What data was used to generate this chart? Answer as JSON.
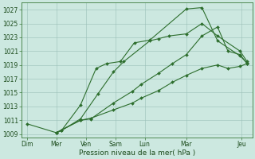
{
  "background_color": "#cce8e0",
  "grid_color": "#9abfb8",
  "line_color": "#2d6e2d",
  "xlabel": "Pression niveau de la mer( hPa )",
  "ylim": [
    1008.5,
    1028.0
  ],
  "yticks": [
    1009,
    1011,
    1013,
    1015,
    1017,
    1019,
    1021,
    1023,
    1025,
    1027
  ],
  "xlim": [
    -0.15,
    6.5
  ],
  "day_positions": [
    0,
    0.85,
    1.7,
    2.55,
    3.4,
    4.6,
    6.2
  ],
  "day_labels": [
    "Dim",
    "Mer",
    "Ven",
    "Sam",
    "Lun",
    "Mar",
    "Jeu"
  ],
  "series": [
    {
      "x": [
        0.0,
        0.85,
        1.0,
        1.55,
        2.0,
        2.3,
        2.7,
        3.1,
        3.55,
        4.6,
        5.05,
        5.5,
        6.15,
        6.35
      ],
      "y": [
        1010.5,
        1009.2,
        1009.5,
        1013.2,
        1018.5,
        1019.2,
        1019.5,
        1022.2,
        1022.6,
        1027.1,
        1027.3,
        1022.5,
        1020.3,
        1019.3
      ]
    },
    {
      "x": [
        0.85,
        1.0,
        1.55,
        2.05,
        2.5,
        2.8,
        3.55,
        3.8,
        4.1,
        4.6,
        5.05,
        5.5,
        6.15,
        6.35
      ],
      "y": [
        1009.2,
        1009.5,
        1011.2,
        1014.8,
        1018.0,
        1019.5,
        1022.5,
        1022.8,
        1023.2,
        1023.5,
        1025.0,
        1023.2,
        1021.0,
        1019.5
      ]
    },
    {
      "x": [
        0.85,
        1.55,
        1.85,
        2.5,
        3.05,
        3.3,
        3.8,
        4.2,
        4.6,
        5.05,
        5.5,
        5.8,
        6.15,
        6.35
      ],
      "y": [
        1009.2,
        1011.0,
        1011.2,
        1013.5,
        1015.2,
        1016.2,
        1017.8,
        1019.2,
        1020.5,
        1023.2,
        1024.5,
        1021.0,
        1020.5,
        1019.2
      ]
    },
    {
      "x": [
        0.85,
        1.55,
        1.85,
        2.5,
        3.05,
        3.3,
        3.8,
        4.2,
        4.6,
        5.05,
        5.5,
        5.8,
        6.15,
        6.35
      ],
      "y": [
        1009.2,
        1011.0,
        1011.3,
        1012.5,
        1013.5,
        1014.2,
        1015.3,
        1016.5,
        1017.5,
        1018.5,
        1019.0,
        1018.5,
        1018.8,
        1019.2
      ]
    }
  ]
}
